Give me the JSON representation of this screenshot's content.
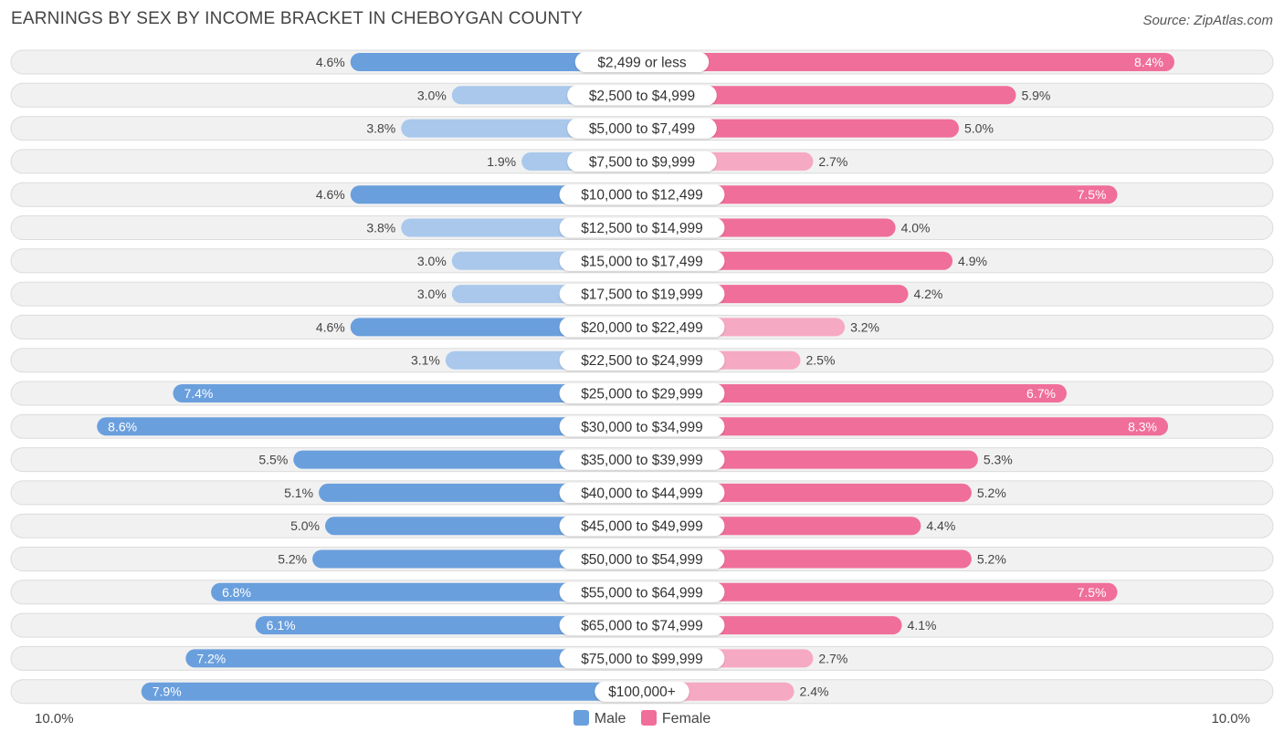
{
  "header": {
    "title": "EARNINGS BY SEX BY INCOME BRACKET IN CHEBOYGAN COUNTY",
    "source": "Source: ZipAtlas.com"
  },
  "axis": {
    "left_label": "10.0%",
    "right_label": "10.0%"
  },
  "legend": {
    "male_label": "Male",
    "female_label": "Female"
  },
  "colors": {
    "male_strong": "#6a9fdd",
    "male_light": "#a9c8ec",
    "female_strong": "#f06e9a",
    "female_light": "#f6a9c3",
    "row_bg": "#f1f1f1",
    "row_border": "#dcdcdc"
  },
  "chart_data": {
    "type": "bar",
    "orientation": "horizontal-diverging",
    "title": "EARNINGS BY SEX BY INCOME BRACKET IN CHEBOYGAN COUNTY",
    "xlim": [
      -10,
      10
    ],
    "unit": "%",
    "categories": [
      "$2,499 or less",
      "$2,500 to $4,999",
      "$5,000 to $7,499",
      "$7,500 to $9,999",
      "$10,000 to $12,499",
      "$12,500 to $14,999",
      "$15,000 to $17,499",
      "$17,500 to $19,999",
      "$20,000 to $22,499",
      "$22,500 to $24,999",
      "$25,000 to $29,999",
      "$30,000 to $34,999",
      "$35,000 to $39,999",
      "$40,000 to $44,999",
      "$45,000 to $49,999",
      "$50,000 to $54,999",
      "$55,000 to $64,999",
      "$65,000 to $74,999",
      "$75,000 to $99,999",
      "$100,000+"
    ],
    "series": [
      {
        "name": "Male",
        "values": [
          4.6,
          3.0,
          3.8,
          1.9,
          4.6,
          3.8,
          3.0,
          3.0,
          4.6,
          3.1,
          7.4,
          8.6,
          5.5,
          5.1,
          5.0,
          5.2,
          6.8,
          6.1,
          7.2,
          7.9
        ],
        "labels": [
          "4.6%",
          "3.0%",
          "3.8%",
          "1.9%",
          "4.6%",
          "3.8%",
          "3.0%",
          "3.0%",
          "4.6%",
          "3.1%",
          "7.4%",
          "8.6%",
          "5.5%",
          "5.1%",
          "5.0%",
          "5.2%",
          "6.8%",
          "6.1%",
          "7.2%",
          "7.9%"
        ]
      },
      {
        "name": "Female",
        "values": [
          8.4,
          5.9,
          5.0,
          2.7,
          7.5,
          4.0,
          4.9,
          4.2,
          3.2,
          2.5,
          6.7,
          8.3,
          5.3,
          5.2,
          4.4,
          5.2,
          7.5,
          4.1,
          2.7,
          2.4
        ],
        "labels": [
          "8.4%",
          "5.9%",
          "5.0%",
          "2.7%",
          "7.5%",
          "4.0%",
          "4.9%",
          "4.2%",
          "3.2%",
          "2.5%",
          "6.7%",
          "8.3%",
          "5.3%",
          "5.2%",
          "4.4%",
          "5.2%",
          "7.5%",
          "4.1%",
          "2.7%",
          "2.4%"
        ]
      }
    ]
  }
}
